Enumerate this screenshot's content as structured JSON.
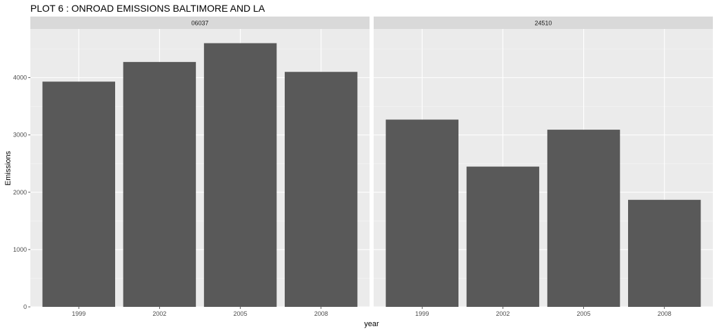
{
  "chart_data": {
    "type": "bar",
    "title": "PLOT 6 : ONROAD EMISSIONS BALTIMORE AND LA",
    "xlabel": "year",
    "ylabel": "Emissions",
    "ylim": [
      0,
      4850
    ],
    "yticks": [
      0,
      1000,
      2000,
      3000,
      4000
    ],
    "categories": [
      "1999",
      "2002",
      "2005",
      "2008"
    ],
    "facets": [
      {
        "strip": "06037",
        "values": [
          3931,
          4274,
          4602,
          4101
        ]
      },
      {
        "strip": "24510",
        "values": [
          3268,
          2448,
          3092,
          1868
        ]
      }
    ],
    "grid": true,
    "colors": {
      "panel_bg": "#ebebeb",
      "strip_bg": "#d9d9d9",
      "grid_major": "#ffffff",
      "grid_minor": "#f5f5f5",
      "bar": "#595959",
      "tick": "#333333"
    }
  }
}
